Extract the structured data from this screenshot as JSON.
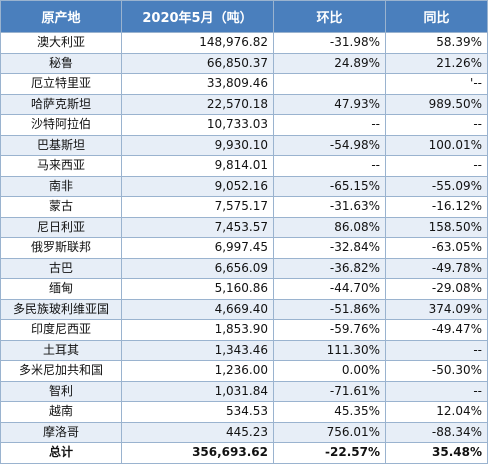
{
  "header": {
    "origin": "原产地",
    "value": "2020年5月（吨）",
    "mom": "环比",
    "yoy": "同比"
  },
  "rows": [
    {
      "origin": "澳大利亚",
      "value": "148,976.82",
      "mom": "-31.98%",
      "yoy": "58.39%"
    },
    {
      "origin": "秘鲁",
      "value": "66,850.37",
      "mom": "24.89%",
      "yoy": "21.26%"
    },
    {
      "origin": "厄立特里亚",
      "value": "33,809.46",
      "mom": "",
      "yoy": "'--"
    },
    {
      "origin": "哈萨克斯坦",
      "value": "22,570.18",
      "mom": "47.93%",
      "yoy": "989.50%"
    },
    {
      "origin": "沙特阿拉伯",
      "value": "10,733.03",
      "mom": "--",
      "yoy": "--"
    },
    {
      "origin": "巴基斯坦",
      "value": "9,930.10",
      "mom": "-54.98%",
      "yoy": "100.01%"
    },
    {
      "origin": "马来西亚",
      "value": "9,814.01",
      "mom": "--",
      "yoy": "--"
    },
    {
      "origin": "南非",
      "value": "9,052.16",
      "mom": "-65.15%",
      "yoy": "-55.09%"
    },
    {
      "origin": "蒙古",
      "value": "7,575.17",
      "mom": "-31.63%",
      "yoy": "-16.12%"
    },
    {
      "origin": "尼日利亚",
      "value": "7,453.57",
      "mom": "86.08%",
      "yoy": "158.50%"
    },
    {
      "origin": "俄罗斯联邦",
      "value": "6,997.45",
      "mom": "-32.84%",
      "yoy": "-63.05%"
    },
    {
      "origin": "古巴",
      "value": "6,656.09",
      "mom": "-36.82%",
      "yoy": "-49.78%"
    },
    {
      "origin": "缅甸",
      "value": "5,160.86",
      "mom": "-44.70%",
      "yoy": "-29.08%"
    },
    {
      "origin": "多民族玻利维亚国",
      "value": "4,669.40",
      "mom": "-51.86%",
      "yoy": "374.09%"
    },
    {
      "origin": "印度尼西亚",
      "value": "1,853.90",
      "mom": "-59.76%",
      "yoy": "-49.47%"
    },
    {
      "origin": "土耳其",
      "value": "1,343.46",
      "mom": "111.30%",
      "yoy": "--"
    },
    {
      "origin": "多米尼加共和国",
      "value": "1,236.00",
      "mom": "0.00%",
      "yoy": "-50.30%"
    },
    {
      "origin": "智利",
      "value": "1,031.84",
      "mom": "-71.61%",
      "yoy": "--"
    },
    {
      "origin": "越南",
      "value": "534.53",
      "mom": "45.35%",
      "yoy": "12.04%"
    },
    {
      "origin": "摩洛哥",
      "value": "445.23",
      "mom": "756.01%",
      "yoy": "-88.34%"
    }
  ],
  "total": {
    "origin": "总计",
    "value": "356,693.62",
    "mom": "-22.57%",
    "yoy": "35.48%"
  }
}
